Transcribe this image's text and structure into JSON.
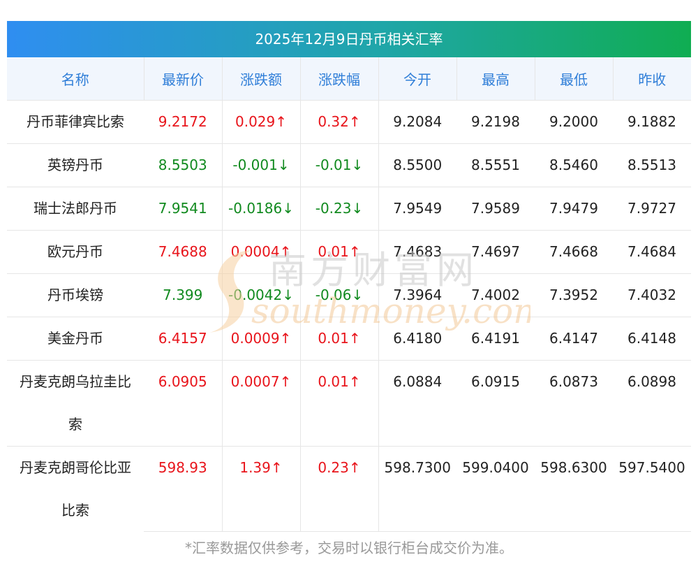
{
  "title": "2025年12月9日丹币相关汇率",
  "headers": [
    "名称",
    "最新价",
    "涨跌额",
    "涨跌幅",
    "今开",
    "最高",
    "最低",
    "昨收"
  ],
  "rows": [
    {
      "name": [
        "丹币菲律宾比索"
      ],
      "dir": "up",
      "latest": "9.2172",
      "change": "0.029↑",
      "pct": "0.32↑",
      "open": "9.2084",
      "high": "9.2198",
      "low": "9.2000",
      "prev": "9.1882"
    },
    {
      "name": [
        "英镑丹币"
      ],
      "dir": "down",
      "latest": "8.5503",
      "change": "-0.001↓",
      "pct": "-0.01↓",
      "open": "8.5500",
      "high": "8.5551",
      "low": "8.5460",
      "prev": "8.5513"
    },
    {
      "name": [
        "瑞士法郎丹币"
      ],
      "dir": "down",
      "latest": "7.9541",
      "change": "-0.0186↓",
      "pct": "-0.23↓",
      "open": "7.9549",
      "high": "7.9589",
      "low": "7.9479",
      "prev": "7.9727"
    },
    {
      "name": [
        "欧元丹币"
      ],
      "dir": "up",
      "latest": "7.4688",
      "change": "0.0004↑",
      "pct": "0.01↑",
      "open": "7.4683",
      "high": "7.4697",
      "low": "7.4668",
      "prev": "7.4684"
    },
    {
      "name": [
        "丹币埃镑"
      ],
      "dir": "down",
      "latest": "7.399",
      "change": "-0.0042↓",
      "pct": "-0.06↓",
      "open": "7.3964",
      "high": "7.4002",
      "low": "7.3952",
      "prev": "7.4032"
    },
    {
      "name": [
        "美金丹币"
      ],
      "dir": "up",
      "latest": "6.4157",
      "change": "0.0009↑",
      "pct": "0.01↑",
      "open": "6.4180",
      "high": "6.4191",
      "low": "6.4147",
      "prev": "6.4148"
    },
    {
      "name": [
        "丹麦克朗乌拉圭比",
        "索"
      ],
      "dir": "up",
      "latest": "6.0905",
      "change": "0.0007↑",
      "pct": "0.01↑",
      "open": "6.0884",
      "high": "6.0915",
      "low": "6.0873",
      "prev": "6.0898"
    },
    {
      "name": [
        "丹麦克朗哥伦比亚",
        "比索"
      ],
      "dir": "up",
      "latest": "598.93",
      "change": "1.39↑",
      "pct": "0.23↑",
      "open": "598.7300",
      "high": "599.0400",
      "low": "598.6300",
      "prev": "597.5400"
    }
  ],
  "watermark": {
    "cn": "南方财富网",
    "en": "southmoney.com"
  },
  "note": "*汇率数据仅供参考，交易时以银行柜台成交价为准。",
  "colors": {
    "up": "#e8141b",
    "down": "#118a1f",
    "header_text": "#2f7ed8",
    "title_from": "#2f8ef1",
    "title_to": "#10ad52"
  }
}
